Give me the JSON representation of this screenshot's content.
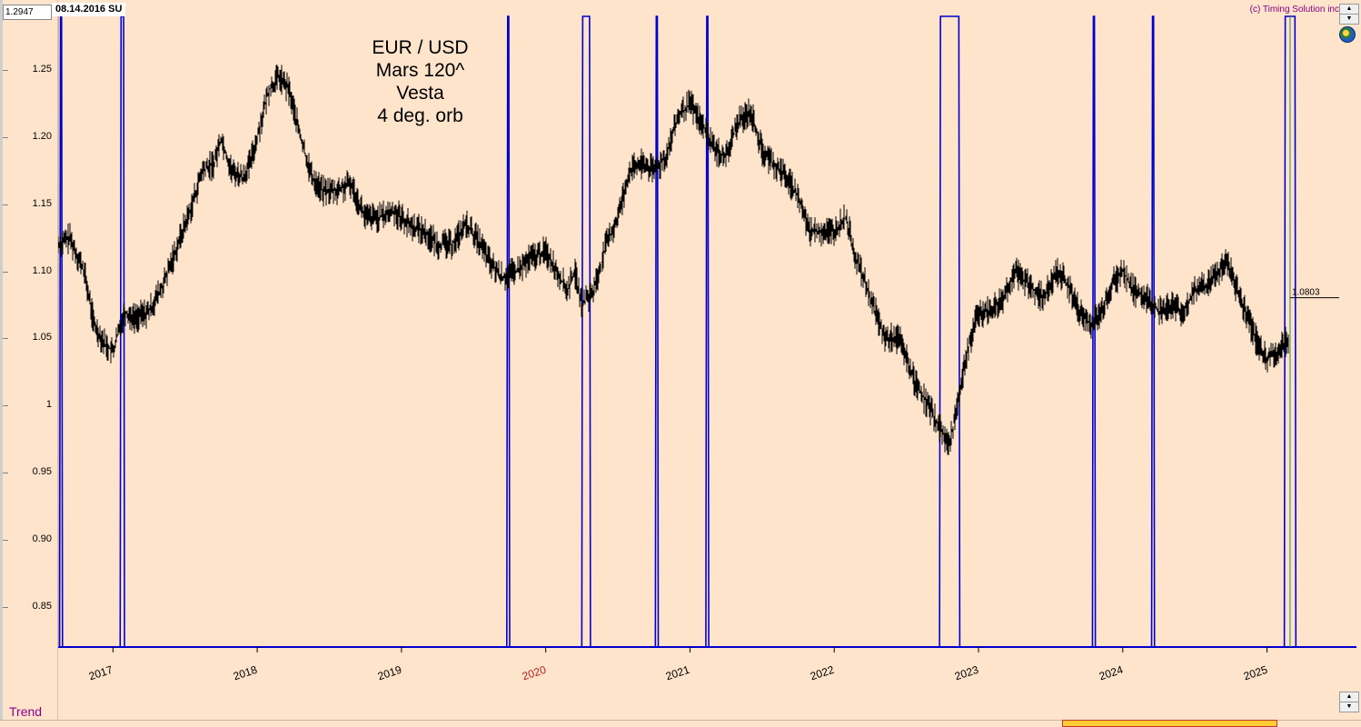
{
  "header": {
    "price_readout": "1.2947",
    "date_readout": "08.14.2016 SU",
    "copyright": "(c) Timing Solution inc"
  },
  "annotation": {
    "lines": [
      "EUR / USD",
      "Mars 120^",
      "Vesta",
      "4 deg. orb"
    ]
  },
  "footer": {
    "panel_label": "Trend"
  },
  "icons": [
    "globe-icon",
    "scroll-up-icon",
    "scroll-down-icon"
  ],
  "chart_data": {
    "type": "line",
    "title": "",
    "xlabel": "",
    "ylabel": "",
    "x_range": [
      2016.62,
      2025.62
    ],
    "ylim": [
      0.82,
      1.29
    ],
    "y_ticks": [
      {
        "value": 1.25,
        "label": "1.25"
      },
      {
        "value": 1.2,
        "label": "1.20"
      },
      {
        "value": 1.15,
        "label": "1.15"
      },
      {
        "value": 1.1,
        "label": "1.10"
      },
      {
        "value": 1.05,
        "label": "1.05"
      },
      {
        "value": 1.0,
        "label": "1"
      },
      {
        "value": 0.95,
        "label": "0.95"
      },
      {
        "value": 0.9,
        "label": "0.90"
      },
      {
        "value": 0.85,
        "label": "0.85"
      }
    ],
    "x_ticks": [
      {
        "value": 2017,
        "label": "2017",
        "color": "#000000"
      },
      {
        "value": 2018,
        "label": "2018",
        "color": "#000000"
      },
      {
        "value": 2019,
        "label": "2019",
        "color": "#000000"
      },
      {
        "value": 2020,
        "label": "2020",
        "color": "#b22222"
      },
      {
        "value": 2021,
        "label": "2021",
        "color": "#000000"
      },
      {
        "value": 2022,
        "label": "2022",
        "color": "#000000"
      },
      {
        "value": 2023,
        "label": "2023",
        "color": "#000000"
      },
      {
        "value": 2024,
        "label": "2024",
        "color": "#000000"
      },
      {
        "value": 2025,
        "label": "2025",
        "color": "#000000"
      }
    ],
    "last_value_label": "1.0803",
    "last_value": 1.0803,
    "price_series": {
      "color": "#000000",
      "points": [
        [
          2016.62,
          1.12
        ],
        [
          2016.7,
          1.125
        ],
        [
          2016.8,
          1.1
        ],
        [
          2016.87,
          1.06
        ],
        [
          2016.95,
          1.045
        ],
        [
          2017.0,
          1.04
        ],
        [
          2017.08,
          1.07
        ],
        [
          2017.15,
          1.065
        ],
        [
          2017.25,
          1.07
        ],
        [
          2017.35,
          1.09
        ],
        [
          2017.45,
          1.12
        ],
        [
          2017.55,
          1.15
        ],
        [
          2017.62,
          1.175
        ],
        [
          2017.7,
          1.18
        ],
        [
          2017.75,
          1.2
        ],
        [
          2017.82,
          1.175
        ],
        [
          2017.9,
          1.17
        ],
        [
          2017.95,
          1.18
        ],
        [
          2018.0,
          1.2
        ],
        [
          2018.08,
          1.235
        ],
        [
          2018.15,
          1.245
        ],
        [
          2018.22,
          1.235
        ],
        [
          2018.3,
          1.2
        ],
        [
          2018.38,
          1.17
        ],
        [
          2018.45,
          1.16
        ],
        [
          2018.55,
          1.16
        ],
        [
          2018.65,
          1.165
        ],
        [
          2018.75,
          1.14
        ],
        [
          2018.85,
          1.14
        ],
        [
          2018.95,
          1.145
        ],
        [
          2019.05,
          1.135
        ],
        [
          2019.15,
          1.13
        ],
        [
          2019.25,
          1.12
        ],
        [
          2019.35,
          1.12
        ],
        [
          2019.45,
          1.135
        ],
        [
          2019.55,
          1.12
        ],
        [
          2019.62,
          1.105
        ],
        [
          2019.7,
          1.095
        ],
        [
          2019.8,
          1.1
        ],
        [
          2019.9,
          1.11
        ],
        [
          2020.0,
          1.115
        ],
        [
          2020.08,
          1.1
        ],
        [
          2020.15,
          1.085
        ],
        [
          2020.2,
          1.1
        ],
        [
          2020.25,
          1.075
        ],
        [
          2020.33,
          1.085
        ],
        [
          2020.42,
          1.12
        ],
        [
          2020.5,
          1.14
        ],
        [
          2020.58,
          1.175
        ],
        [
          2020.67,
          1.18
        ],
        [
          2020.75,
          1.175
        ],
        [
          2020.83,
          1.185
        ],
        [
          2020.92,
          1.215
        ],
        [
          2021.0,
          1.225
        ],
        [
          2021.08,
          1.21
        ],
        [
          2021.18,
          1.19
        ],
        [
          2021.25,
          1.185
        ],
        [
          2021.33,
          1.21
        ],
        [
          2021.42,
          1.22
        ],
        [
          2021.5,
          1.19
        ],
        [
          2021.58,
          1.18
        ],
        [
          2021.67,
          1.17
        ],
        [
          2021.75,
          1.155
        ],
        [
          2021.83,
          1.13
        ],
        [
          2021.92,
          1.13
        ],
        [
          2022.0,
          1.13
        ],
        [
          2022.08,
          1.14
        ],
        [
          2022.15,
          1.11
        ],
        [
          2022.25,
          1.08
        ],
        [
          2022.35,
          1.05
        ],
        [
          2022.45,
          1.05
        ],
        [
          2022.55,
          1.02
        ],
        [
          2022.65,
          1.0
        ],
        [
          2022.75,
          0.98
        ],
        [
          2022.8,
          0.97
        ],
        [
          2022.85,
          1.0
        ],
        [
          2022.92,
          1.04
        ],
        [
          2023.0,
          1.07
        ],
        [
          2023.08,
          1.07
        ],
        [
          2023.17,
          1.08
        ],
        [
          2023.25,
          1.1
        ],
        [
          2023.35,
          1.09
        ],
        [
          2023.45,
          1.08
        ],
        [
          2023.55,
          1.1
        ],
        [
          2023.62,
          1.09
        ],
        [
          2023.7,
          1.07
        ],
        [
          2023.78,
          1.06
        ],
        [
          2023.85,
          1.07
        ],
        [
          2023.92,
          1.09
        ],
        [
          2024.0,
          1.1
        ],
        [
          2024.08,
          1.085
        ],
        [
          2024.17,
          1.08
        ],
        [
          2024.25,
          1.07
        ],
        [
          2024.33,
          1.075
        ],
        [
          2024.42,
          1.07
        ],
        [
          2024.5,
          1.085
        ],
        [
          2024.58,
          1.09
        ],
        [
          2024.67,
          1.1
        ],
        [
          2024.72,
          1.11
        ],
        [
          2024.78,
          1.09
        ],
        [
          2024.85,
          1.07
        ],
        [
          2024.92,
          1.05
        ],
        [
          2025.0,
          1.035
        ],
        [
          2025.08,
          1.04
        ],
        [
          2025.15,
          1.05
        ]
      ]
    },
    "aspect_series": {
      "color": "#0000cc",
      "name": "",
      "high": 1.29,
      "low": 0.82,
      "windows": [
        [
          2016.63,
          2016.65
        ],
        [
          2017.05,
          2017.08
        ],
        [
          2019.73,
          2019.75
        ],
        [
          2020.25,
          2020.31
        ],
        [
          2020.76,
          2020.78
        ],
        [
          2021.11,
          2021.13
        ],
        [
          2022.73,
          2022.87
        ],
        [
          2023.79,
          2023.81
        ],
        [
          2024.2,
          2024.22
        ],
        [
          2025.12,
          2025.2
        ]
      ]
    },
    "marker_line_x": 2025.16
  }
}
